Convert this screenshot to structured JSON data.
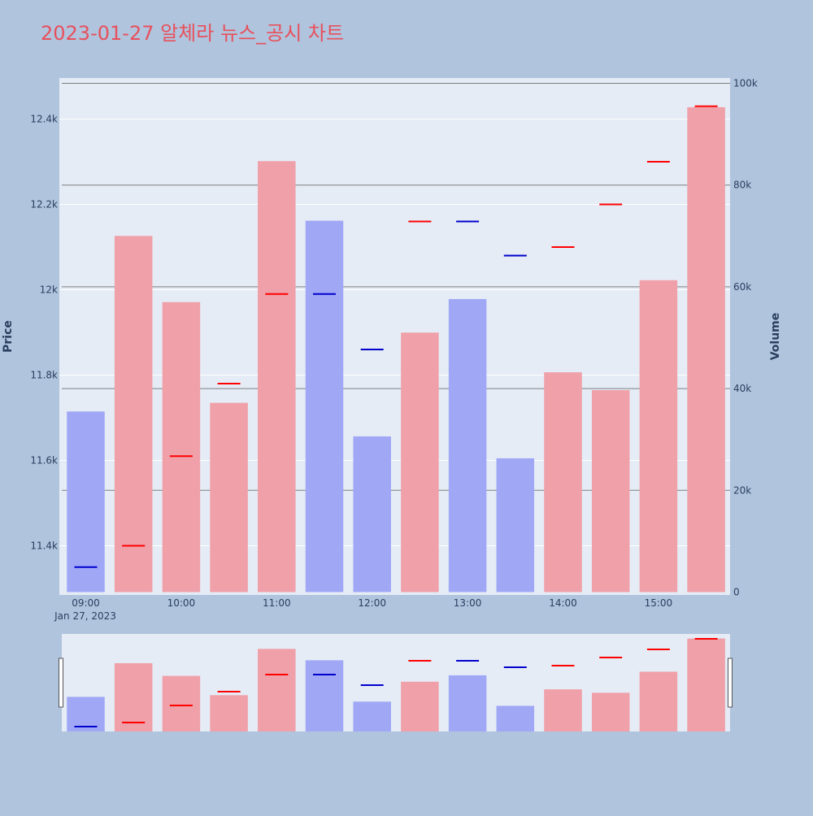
{
  "title": "2023-01-27 알체라 뉴스_공시 차트",
  "colors": {
    "background": "#b0c4de",
    "plot_bg": "#e5ecf6",
    "title": "#e8505b",
    "up_bar": "#f0a0a8",
    "down_bar": "#a0a8f6",
    "up_tick": "#ff0000",
    "down_tick": "#0000cc"
  },
  "chart_data": {
    "type": "bar",
    "title": "2023-01-27 알체라 뉴스_공시 차트",
    "x": [
      "09:00",
      "09:30",
      "10:00",
      "10:30",
      "11:00",
      "11:30",
      "12:00",
      "12:30",
      "13:00",
      "13:30",
      "14:00",
      "14:30",
      "15:00",
      "15:30"
    ],
    "x_ticks": [
      "09:00",
      "10:00",
      "11:00",
      "12:00",
      "13:00",
      "14:00",
      "15:00"
    ],
    "x_date_label": "Jan 27, 2023",
    "price": {
      "axis_label": "Price",
      "ylim": [
        11290,
        12490
      ],
      "tick_values": [
        11400,
        11600,
        11800,
        12000,
        12200,
        12400
      ],
      "tick_labels": [
        "11.4k",
        "11.6k",
        "11.8k",
        "12k",
        "12.2k",
        "12.4k"
      ],
      "close": [
        11350,
        11400,
        11610,
        11780,
        11990,
        11990,
        11860,
        12160,
        12160,
        12080,
        12100,
        12200,
        12300,
        12430
      ],
      "direction": [
        "down",
        "up",
        "up",
        "up",
        "up",
        "down",
        "down",
        "up",
        "down",
        "down",
        "up",
        "up",
        "up",
        "up"
      ]
    },
    "volume": {
      "axis_label": "Volume",
      "ylim": [
        0,
        100000
      ],
      "tick_values": [
        0,
        20000,
        40000,
        60000,
        80000,
        100000
      ],
      "tick_labels": [
        "0",
        "20k",
        "40k",
        "60k",
        "80k",
        "100k"
      ],
      "values": [
        35500,
        70000,
        57000,
        37200,
        84700,
        73000,
        30600,
        51000,
        57600,
        26300,
        43200,
        39700,
        61300,
        95300
      ]
    },
    "grid": true
  }
}
